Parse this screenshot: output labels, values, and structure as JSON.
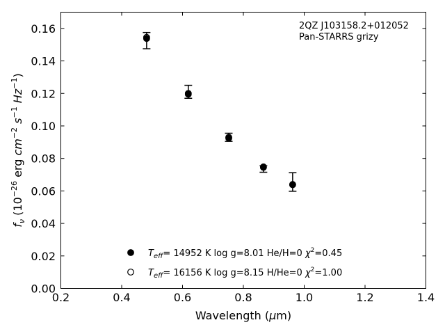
{
  "chart_data": {
    "type": "scatter",
    "title": "",
    "xlabel": "Wavelength (μm)",
    "ylabel": "f_ν (10^−26 erg cm^−2 s^−1 Hz^−1)",
    "xlim": [
      0.2,
      1.4
    ],
    "ylim": [
      0.0,
      0.17
    ],
    "xticks": [
      "0.2",
      "0.4",
      "0.6",
      "0.8",
      "1.0",
      "1.2",
      "1.4"
    ],
    "yticks": [
      "0.00",
      "0.02",
      "0.04",
      "0.06",
      "0.08",
      "0.10",
      "0.12",
      "0.14",
      "0.16"
    ],
    "grid": false,
    "annotation": {
      "line1": "2QZ J103158.2+012052",
      "line2": "Pan-STARRS grizy"
    },
    "observed": {
      "x": [
        0.482,
        0.619,
        0.752,
        0.866,
        0.962
      ],
      "y": [
        0.1525,
        0.121,
        0.093,
        0.0735,
        0.0655
      ],
      "yerr_low": [
        0.1475,
        0.117,
        0.0905,
        0.0715,
        0.0598
      ],
      "yerr_high": [
        0.1575,
        0.125,
        0.0955,
        0.0755,
        0.0712
      ]
    },
    "series": [
      {
        "name": "Teff= 14952 K  log g=8.01  He/H=0  χ²=0.45",
        "marker": "filled",
        "x": [
          0.482,
          0.619,
          0.752,
          0.866,
          0.962
        ],
        "y": [
          0.1538,
          0.1195,
          0.0925,
          0.0745,
          0.0638
        ]
      },
      {
        "name": "Teff= 16156 K  log g=8.15  H/He=0  χ²=1.00",
        "marker": "open",
        "x": [
          0.482,
          0.619,
          0.752,
          0.866,
          0.962
        ],
        "y": [
          0.1545,
          0.12,
          0.093,
          0.0748,
          0.064
        ]
      }
    ],
    "legend": {
      "placement": "lower-center",
      "entries": [
        {
          "teff": "14952",
          "logg": "8.01",
          "comp": "He/H=0",
          "chi2": "0.45"
        },
        {
          "teff": "16156",
          "logg": "8.15",
          "comp": "H/He=0",
          "chi2": "1.00"
        }
      ]
    }
  }
}
